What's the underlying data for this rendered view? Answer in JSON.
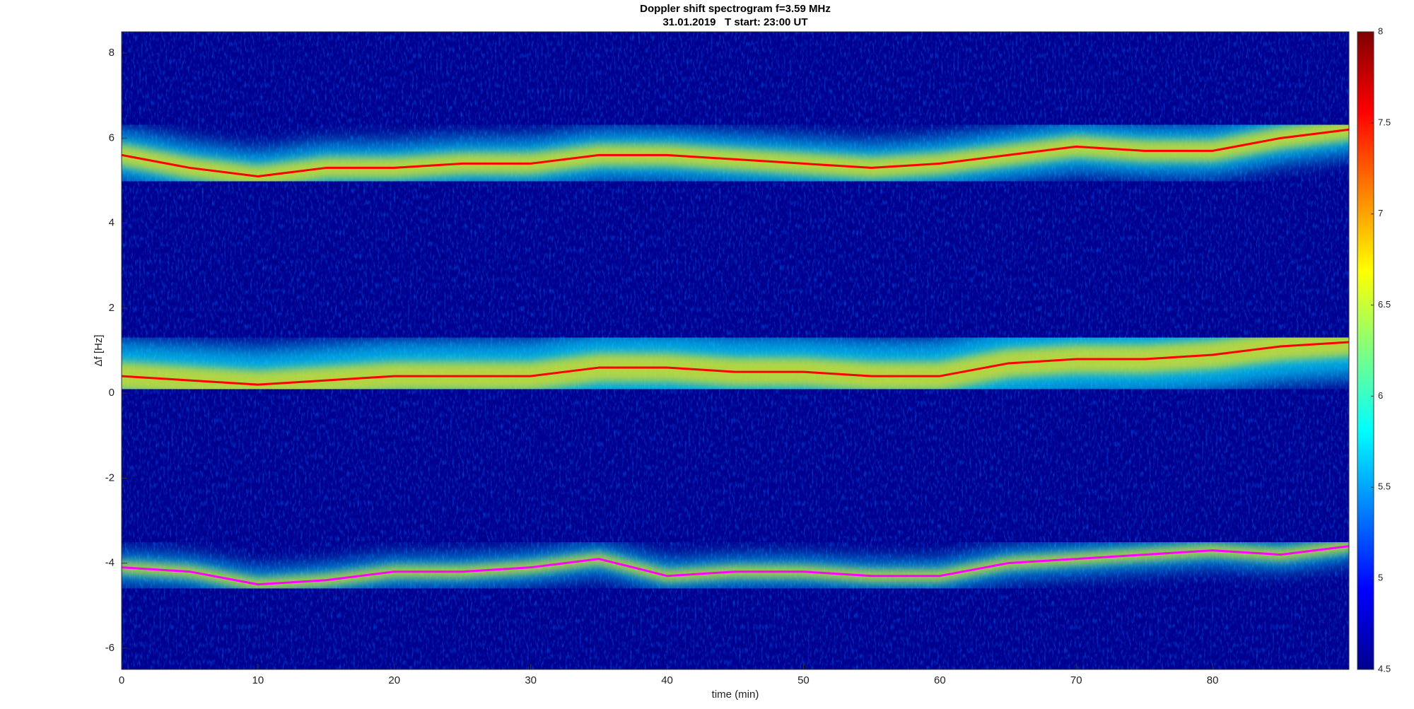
{
  "chart_data": {
    "type": "spectrogram",
    "title": "Doppler shift spectrogram f=3.59 MHz",
    "subtitle": "31.01.2019   T start: 23:00 UT",
    "x_label": "time (min)",
    "y_label": "Δf [Hz]",
    "xlim": [
      0,
      90
    ],
    "xticks": [
      0,
      10,
      20,
      30,
      40,
      50,
      60,
      70,
      80
    ],
    "ylim": [
      -6.5,
      8.5
    ],
    "yticks": [
      -6,
      -4,
      -2,
      0,
      2,
      4,
      6,
      8
    ],
    "colormap": "jet",
    "clim": [
      4.5,
      8
    ],
    "cticks": [
      4.5,
      5,
      5.5,
      6,
      6.5,
      7,
      7.5,
      8
    ],
    "x": [
      0,
      5,
      10,
      15,
      20,
      25,
      30,
      35,
      40,
      45,
      50,
      55,
      60,
      65,
      70,
      75,
      80,
      85,
      90
    ],
    "series": [
      {
        "color": "#ff0000",
        "values": [
          5.6,
          5.3,
          5.1,
          5.3,
          5.3,
          5.4,
          5.4,
          5.6,
          5.6,
          5.5,
          5.4,
          5.3,
          5.4,
          5.6,
          5.8,
          5.7,
          5.7,
          6.0,
          6.2
        ]
      },
      {
        "color": "#ff0000",
        "values": [
          0.4,
          0.3,
          0.2,
          0.3,
          0.4,
          0.4,
          0.4,
          0.6,
          0.6,
          0.5,
          0.5,
          0.4,
          0.4,
          0.7,
          0.8,
          0.8,
          0.9,
          1.1,
          1.2
        ]
      },
      {
        "color": "#ff00ff",
        "values": [
          -4.1,
          -4.2,
          -4.5,
          -4.4,
          -4.2,
          -4.2,
          -4.1,
          -3.9,
          -4.3,
          -4.2,
          -4.2,
          -4.3,
          -4.3,
          -4.0,
          -3.9,
          -3.8,
          -3.7,
          -3.8,
          -3.6
        ]
      }
    ]
  }
}
